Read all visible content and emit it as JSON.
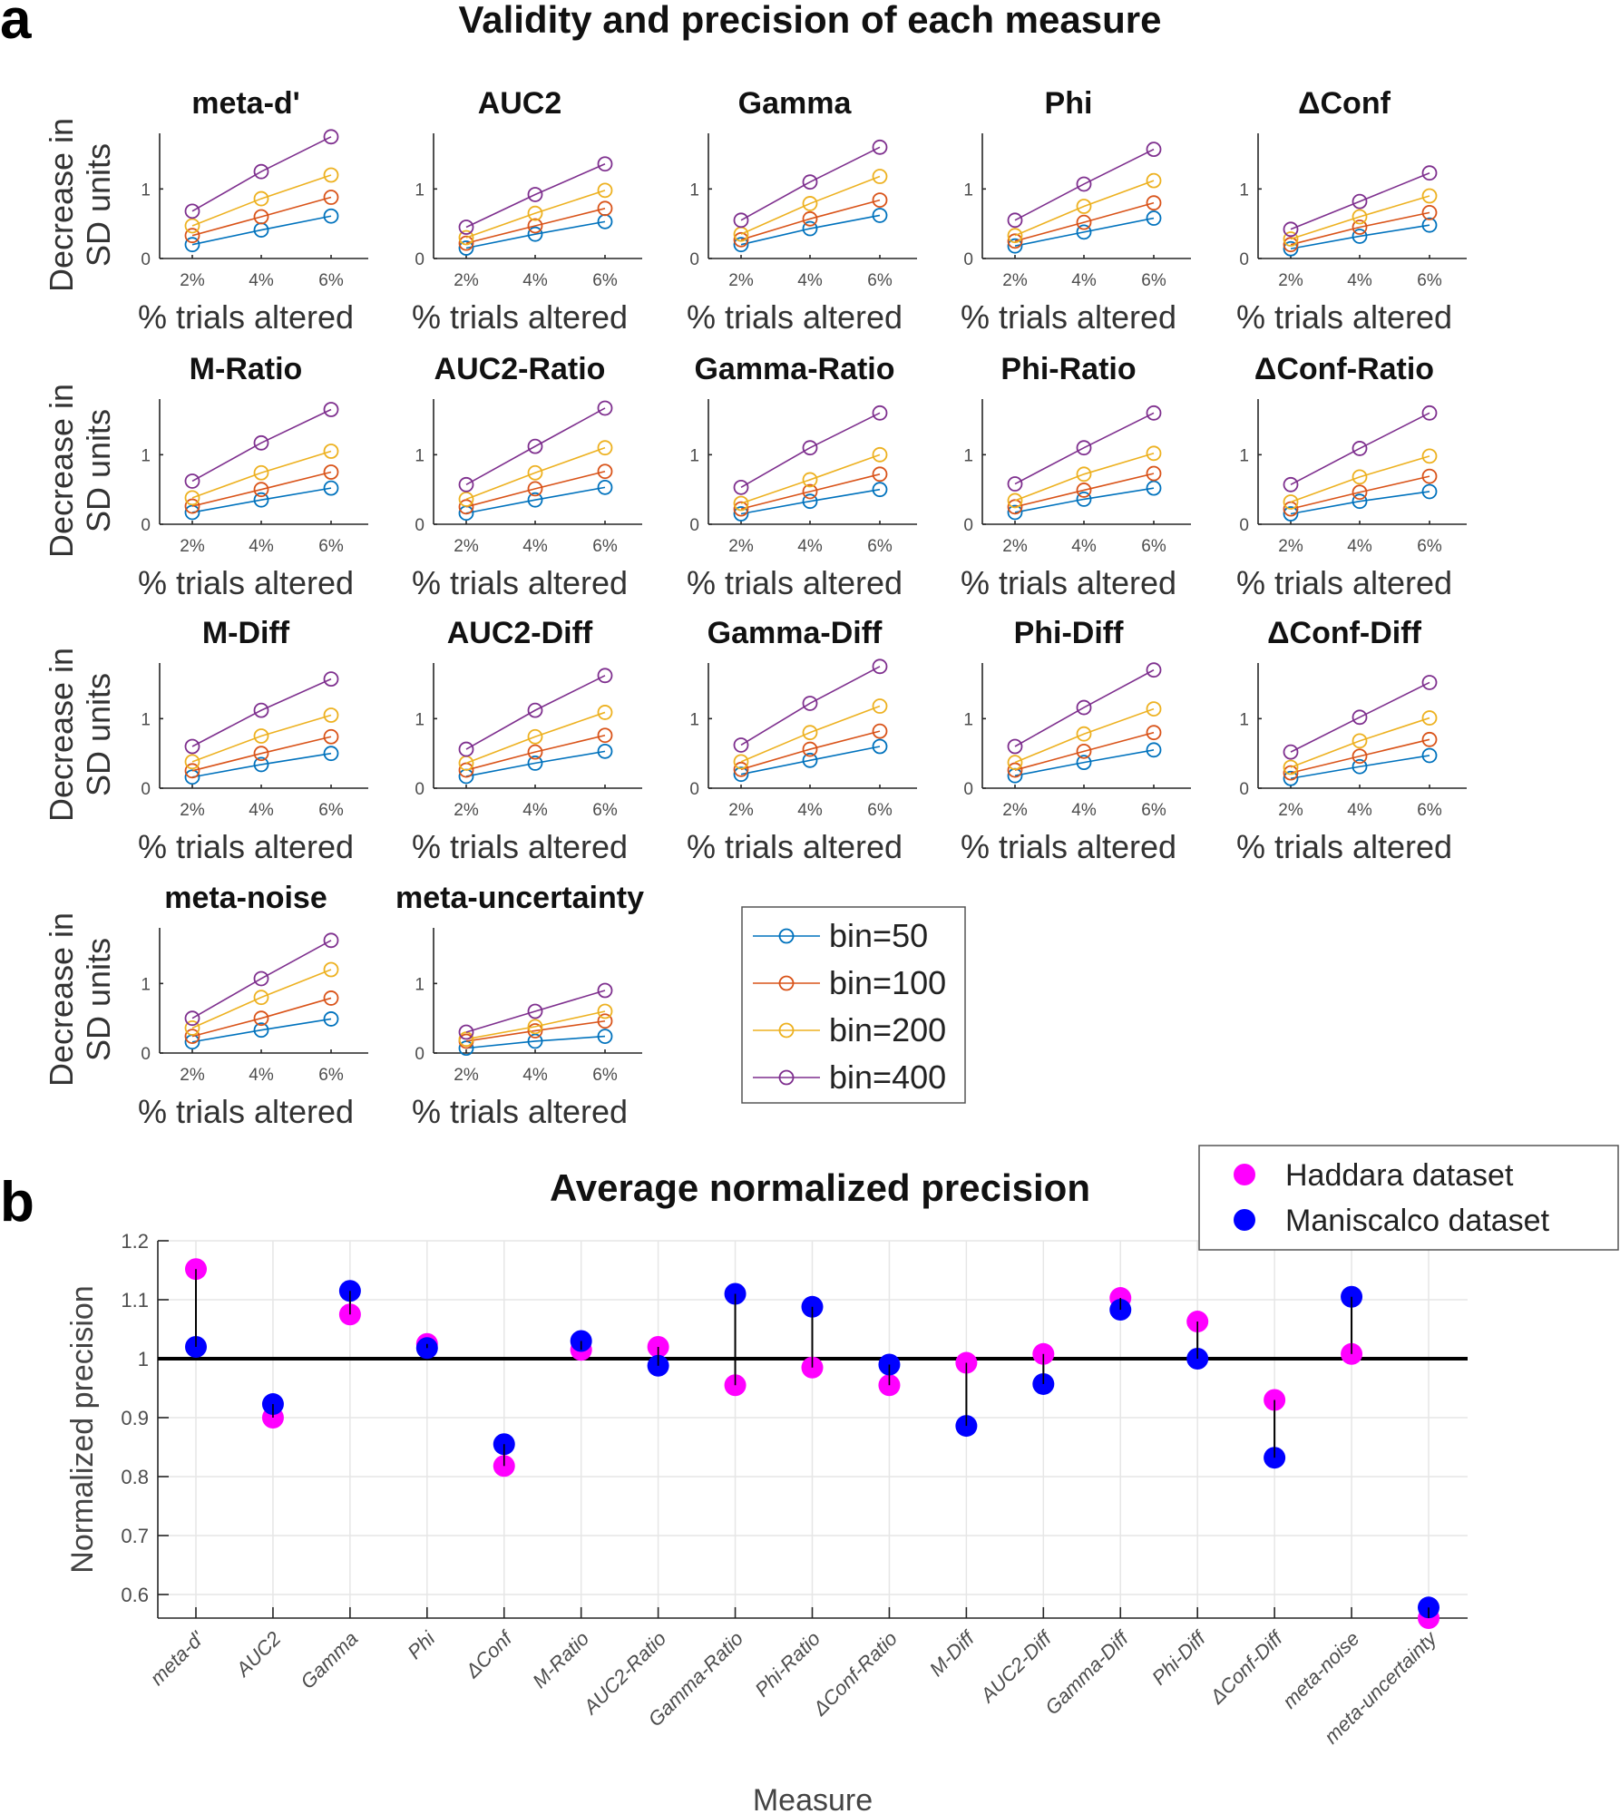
{
  "figure": {
    "panel_a_letter": "a",
    "panel_b_letter": "b"
  },
  "chart_data": [
    {
      "type": "line",
      "panel": "a",
      "title": "Validity and precision of each measure",
      "xlabel": "% trials altered",
      "ylabel": "Decrease in SD units",
      "ylabel_lines": [
        "Decrease in",
        "SD units"
      ],
      "x": [
        "2%",
        "4%",
        "6%"
      ],
      "yticks": [
        0,
        1
      ],
      "ylim": [
        0,
        1.8
      ],
      "grid": false,
      "legend": {
        "placement": "lower-middle",
        "entries": [
          {
            "label": "bin=50",
            "color": "#0072BD"
          },
          {
            "label": "bin=100",
            "color": "#D95319"
          },
          {
            "label": "bin=200",
            "color": "#EDB120"
          },
          {
            "label": "bin=400",
            "color": "#7E2F8E"
          }
        ]
      },
      "subplots": [
        {
          "title": "meta-d'",
          "series": [
            {
              "name": "bin=50",
              "values": [
                0.2,
                0.41,
                0.61
              ]
            },
            {
              "name": "bin=100",
              "values": [
                0.33,
                0.6,
                0.88
              ]
            },
            {
              "name": "bin=200",
              "values": [
                0.47,
                0.86,
                1.2
              ]
            },
            {
              "name": "bin=400",
              "values": [
                0.68,
                1.25,
                1.75
              ]
            }
          ]
        },
        {
          "title": "AUC2",
          "series": [
            {
              "name": "bin=50",
              "values": [
                0.15,
                0.35,
                0.53
              ]
            },
            {
              "name": "bin=100",
              "values": [
                0.22,
                0.47,
                0.72
              ]
            },
            {
              "name": "bin=200",
              "values": [
                0.3,
                0.65,
                0.98
              ]
            },
            {
              "name": "bin=400",
              "values": [
                0.45,
                0.92,
                1.36
              ]
            }
          ]
        },
        {
          "title": "Gamma",
          "series": [
            {
              "name": "bin=50",
              "values": [
                0.2,
                0.43,
                0.62
              ]
            },
            {
              "name": "bin=100",
              "values": [
                0.27,
                0.57,
                0.84
              ]
            },
            {
              "name": "bin=200",
              "values": [
                0.35,
                0.79,
                1.18
              ]
            },
            {
              "name": "bin=400",
              "values": [
                0.55,
                1.1,
                1.6
              ]
            }
          ]
        },
        {
          "title": "Phi",
          "series": [
            {
              "name": "bin=50",
              "values": [
                0.18,
                0.38,
                0.58
              ]
            },
            {
              "name": "bin=100",
              "values": [
                0.25,
                0.52,
                0.8
              ]
            },
            {
              "name": "bin=200",
              "values": [
                0.33,
                0.75,
                1.12
              ]
            },
            {
              "name": "bin=400",
              "values": [
                0.55,
                1.07,
                1.57
              ]
            }
          ]
        },
        {
          "title": "ΔConf",
          "series": [
            {
              "name": "bin=50",
              "values": [
                0.14,
                0.32,
                0.48
              ]
            },
            {
              "name": "bin=100",
              "values": [
                0.2,
                0.45,
                0.66
              ]
            },
            {
              "name": "bin=200",
              "values": [
                0.28,
                0.6,
                0.9
              ]
            },
            {
              "name": "bin=400",
              "values": [
                0.42,
                0.82,
                1.23
              ]
            }
          ]
        },
        {
          "title": "M-Ratio",
          "series": [
            {
              "name": "bin=50",
              "values": [
                0.17,
                0.35,
                0.52
              ]
            },
            {
              "name": "bin=100",
              "values": [
                0.26,
                0.5,
                0.75
              ]
            },
            {
              "name": "bin=200",
              "values": [
                0.38,
                0.74,
                1.05
              ]
            },
            {
              "name": "bin=400",
              "values": [
                0.62,
                1.17,
                1.65
              ]
            }
          ]
        },
        {
          "title": "AUC2-Ratio",
          "series": [
            {
              "name": "bin=50",
              "values": [
                0.16,
                0.35,
                0.53
              ]
            },
            {
              "name": "bin=100",
              "values": [
                0.25,
                0.51,
                0.76
              ]
            },
            {
              "name": "bin=200",
              "values": [
                0.36,
                0.74,
                1.1
              ]
            },
            {
              "name": "bin=400",
              "values": [
                0.57,
                1.12,
                1.67
              ]
            }
          ]
        },
        {
          "title": "Gamma-Ratio",
          "series": [
            {
              "name": "bin=50",
              "values": [
                0.15,
                0.33,
                0.5
              ]
            },
            {
              "name": "bin=100",
              "values": [
                0.22,
                0.47,
                0.72
              ]
            },
            {
              "name": "bin=200",
              "values": [
                0.3,
                0.64,
                1.0
              ]
            },
            {
              "name": "bin=400",
              "values": [
                0.53,
                1.1,
                1.6
              ]
            }
          ]
        },
        {
          "title": "Phi-Ratio",
          "series": [
            {
              "name": "bin=50",
              "values": [
                0.17,
                0.36,
                0.52
              ]
            },
            {
              "name": "bin=100",
              "values": [
                0.25,
                0.49,
                0.73
              ]
            },
            {
              "name": "bin=200",
              "values": [
                0.34,
                0.72,
                1.02
              ]
            },
            {
              "name": "bin=400",
              "values": [
                0.58,
                1.1,
                1.6
              ]
            }
          ]
        },
        {
          "title": "ΔConf-Ratio",
          "series": [
            {
              "name": "bin=50",
              "values": [
                0.15,
                0.33,
                0.47
              ]
            },
            {
              "name": "bin=100",
              "values": [
                0.22,
                0.46,
                0.69
              ]
            },
            {
              "name": "bin=200",
              "values": [
                0.32,
                0.68,
                0.98
              ]
            },
            {
              "name": "bin=400",
              "values": [
                0.57,
                1.09,
                1.6
              ]
            }
          ]
        },
        {
          "title": "M-Diff",
          "series": [
            {
              "name": "bin=50",
              "values": [
                0.16,
                0.34,
                0.5
              ]
            },
            {
              "name": "bin=100",
              "values": [
                0.25,
                0.5,
                0.74
              ]
            },
            {
              "name": "bin=200",
              "values": [
                0.38,
                0.75,
                1.05
              ]
            },
            {
              "name": "bin=400",
              "values": [
                0.6,
                1.12,
                1.57
              ]
            }
          ]
        },
        {
          "title": "AUC2-Diff",
          "series": [
            {
              "name": "bin=50",
              "values": [
                0.17,
                0.36,
                0.53
              ]
            },
            {
              "name": "bin=100",
              "values": [
                0.26,
                0.52,
                0.76
              ]
            },
            {
              "name": "bin=200",
              "values": [
                0.36,
                0.74,
                1.09
              ]
            },
            {
              "name": "bin=400",
              "values": [
                0.56,
                1.12,
                1.62
              ]
            }
          ]
        },
        {
          "title": "Gamma-Diff",
          "series": [
            {
              "name": "bin=50",
              "values": [
                0.2,
                0.4,
                0.6
              ]
            },
            {
              "name": "bin=100",
              "values": [
                0.27,
                0.56,
                0.82
              ]
            },
            {
              "name": "bin=200",
              "values": [
                0.38,
                0.8,
                1.18
              ]
            },
            {
              "name": "bin=400",
              "values": [
                0.62,
                1.22,
                1.75
              ]
            }
          ]
        },
        {
          "title": "Phi-Diff",
          "series": [
            {
              "name": "bin=50",
              "values": [
                0.18,
                0.37,
                0.55
              ]
            },
            {
              "name": "bin=100",
              "values": [
                0.26,
                0.53,
                0.8
              ]
            },
            {
              "name": "bin=200",
              "values": [
                0.37,
                0.78,
                1.14
              ]
            },
            {
              "name": "bin=400",
              "values": [
                0.6,
                1.16,
                1.7
              ]
            }
          ]
        },
        {
          "title": "ΔConf-Diff",
          "series": [
            {
              "name": "bin=50",
              "values": [
                0.14,
                0.31,
                0.47
              ]
            },
            {
              "name": "bin=100",
              "values": [
                0.22,
                0.46,
                0.7
              ]
            },
            {
              "name": "bin=200",
              "values": [
                0.3,
                0.68,
                1.01
              ]
            },
            {
              "name": "bin=400",
              "values": [
                0.52,
                1.02,
                1.52
              ]
            }
          ]
        },
        {
          "title": "meta-noise",
          "series": [
            {
              "name": "bin=50",
              "values": [
                0.16,
                0.33,
                0.49
              ]
            },
            {
              "name": "bin=100",
              "values": [
                0.24,
                0.5,
                0.79
              ]
            },
            {
              "name": "bin=200",
              "values": [
                0.36,
                0.8,
                1.2
              ]
            },
            {
              "name": "bin=400",
              "values": [
                0.5,
                1.07,
                1.62
              ]
            }
          ]
        },
        {
          "title": "meta-uncertainty",
          "series": [
            {
              "name": "bin=50",
              "values": [
                0.07,
                0.17,
                0.24
              ]
            },
            {
              "name": "bin=100",
              "values": [
                0.17,
                0.32,
                0.46
              ]
            },
            {
              "name": "bin=200",
              "values": [
                0.2,
                0.38,
                0.6
              ]
            },
            {
              "name": "bin=400",
              "values": [
                0.3,
                0.6,
                0.9
              ]
            }
          ]
        }
      ]
    },
    {
      "type": "scatter",
      "panel": "b",
      "title": "Average normalized precision",
      "xlabel": "Measure",
      "ylabel": "Normalized precision",
      "ylim": [
        0.56,
        1.2
      ],
      "yticks": [
        0.6,
        0.7,
        0.8,
        0.9,
        1,
        1.1,
        1.2
      ],
      "ytick_labels": [
        "0.6",
        "0.7",
        "0.8",
        "0.9",
        "1",
        "1.1",
        "1.2"
      ],
      "reference_line": 1,
      "grid": true,
      "legend": {
        "placement": "top-right"
      },
      "categories": [
        "meta-d'",
        "AUC2",
        "Gamma",
        "Phi",
        "ΔConf",
        "M-Ratio",
        "AUC2-Ratio",
        "Gamma-Ratio",
        "Phi-Ratio",
        "ΔConf-Ratio",
        "M-Diff",
        "AUC2-Diff",
        "Gamma-Diff",
        "Phi-Diff",
        "ΔConf-Diff",
        "meta-noise",
        "meta-uncertainty"
      ],
      "series": [
        {
          "name": "Haddara dataset",
          "color": "#FF00FF",
          "values": [
            1.152,
            0.9,
            1.075,
            1.025,
            0.818,
            1.015,
            1.02,
            0.955,
            0.985,
            0.955,
            0.993,
            1.008,
            1.103,
            1.063,
            0.93,
            1.008,
            0.56
          ]
        },
        {
          "name": "Maniscalco dataset",
          "color": "#0000FF",
          "values": [
            1.02,
            0.923,
            1.115,
            1.018,
            0.855,
            1.03,
            0.988,
            1.11,
            1.088,
            0.99,
            0.886,
            0.957,
            1.083,
            1.0,
            0.832,
            1.105,
            0.578
          ]
        }
      ]
    }
  ]
}
